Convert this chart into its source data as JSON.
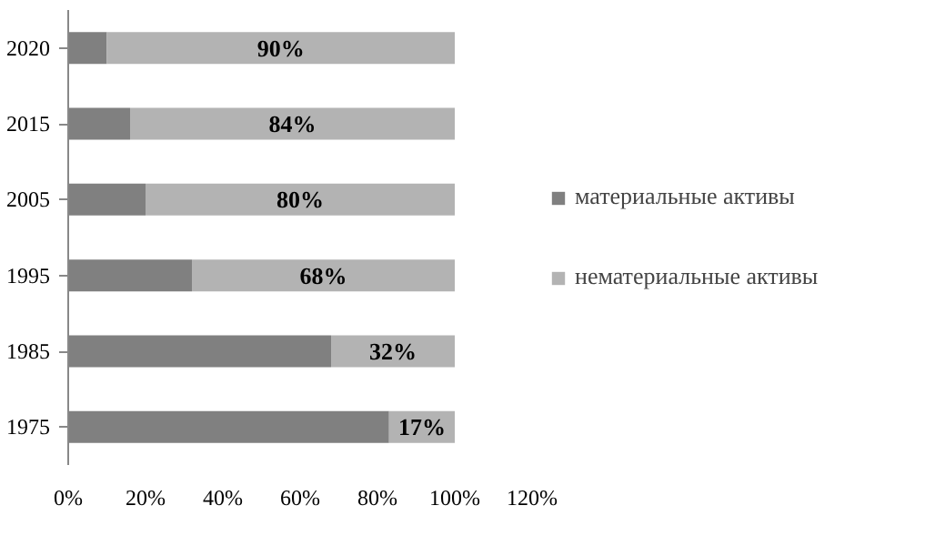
{
  "chart_data": {
    "type": "bar",
    "orientation": "horizontal",
    "stacked": true,
    "categories": [
      "2020",
      "2015",
      "2005",
      "1995",
      "1985",
      "1975"
    ],
    "series": [
      {
        "name": "материальные активы",
        "color": "#808080",
        "values": [
          10,
          16,
          20,
          32,
          68,
          83
        ]
      },
      {
        "name": "нематериальные активы",
        "color": "#b3b3b3",
        "values": [
          90,
          84,
          80,
          68,
          32,
          17
        ],
        "value_labels": [
          "90%",
          "84%",
          "80%",
          "68%",
          "32%",
          "17%"
        ]
      }
    ],
    "xlim": [
      0,
      120
    ],
    "xticks": [
      {
        "value": 0,
        "label": "0%"
      },
      {
        "value": 20,
        "label": "20%"
      },
      {
        "value": 40,
        "label": "40%"
      },
      {
        "value": 60,
        "label": "60%"
      },
      {
        "value": 80,
        "label": "80%"
      },
      {
        "value": 100,
        "label": "100%"
      },
      {
        "value": 120,
        "label": "120%"
      }
    ],
    "grid": false,
    "legend": "right"
  }
}
